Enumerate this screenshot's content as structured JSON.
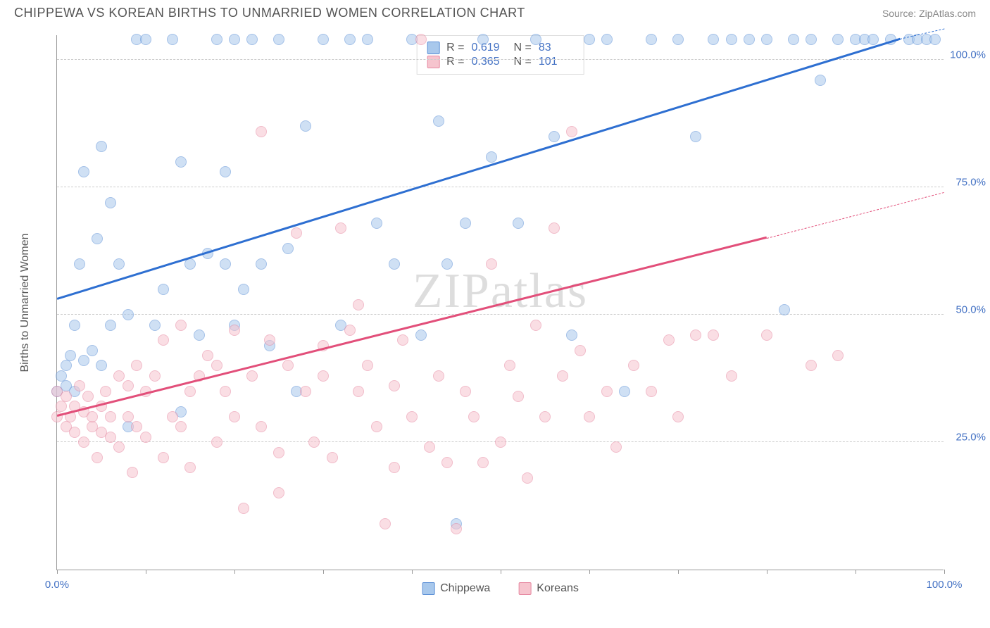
{
  "title": "CHIPPEWA VS KOREAN BIRTHS TO UNMARRIED WOMEN CORRELATION CHART",
  "source_label": "Source: ZipAtlas.com",
  "y_axis_label": "Births to Unmarried Women",
  "watermark": "ZIPatlas",
  "chart": {
    "type": "scatter",
    "xlim": [
      0,
      100
    ],
    "ylim": [
      0,
      105
    ],
    "x_ticks": [
      0,
      10,
      20,
      30,
      40,
      50,
      60,
      70,
      80,
      90,
      100
    ],
    "x_tick_labels": {
      "0": "0.0%",
      "100": "100.0%"
    },
    "y_grid": [
      25,
      50,
      75,
      100
    ],
    "y_tick_labels": {
      "25": "25.0%",
      "50": "50.0%",
      "75": "75.0%",
      "100": "100.0%"
    },
    "background_color": "#ffffff",
    "grid_color": "#cccccc",
    "axis_color": "#999999",
    "tick_label_color": "#4472c4",
    "point_radius": 8,
    "point_opacity": 0.55,
    "series": [
      {
        "name": "Chippewa",
        "fill_color": "#a8c8ec",
        "stroke_color": "#5b8fd6",
        "line_color": "#2e6fd1",
        "r_value": "0.619",
        "n_value": "83",
        "trend": {
          "x1": 0,
          "y1": 53,
          "x2": 95,
          "y2": 104,
          "dash_to_x": 100,
          "dash_to_y": 106
        },
        "points": [
          [
            0,
            35
          ],
          [
            0.5,
            38
          ],
          [
            1,
            40
          ],
          [
            1,
            36
          ],
          [
            1.5,
            42
          ],
          [
            2,
            35
          ],
          [
            2,
            48
          ],
          [
            2.5,
            60
          ],
          [
            3,
            41
          ],
          [
            3,
            78
          ],
          [
            4,
            43
          ],
          [
            4.5,
            65
          ],
          [
            5,
            83
          ],
          [
            5,
            40
          ],
          [
            6,
            48
          ],
          [
            6,
            72
          ],
          [
            7,
            60
          ],
          [
            8,
            28
          ],
          [
            8,
            50
          ],
          [
            9,
            104
          ],
          [
            10,
            104
          ],
          [
            11,
            48
          ],
          [
            12,
            55
          ],
          [
            13,
            104
          ],
          [
            14,
            31
          ],
          [
            14,
            80
          ],
          [
            15,
            60
          ],
          [
            16,
            46
          ],
          [
            17,
            62
          ],
          [
            18,
            104
          ],
          [
            19,
            60
          ],
          [
            19,
            78
          ],
          [
            20,
            48
          ],
          [
            20,
            104
          ],
          [
            21,
            55
          ],
          [
            22,
            104
          ],
          [
            23,
            60
          ],
          [
            24,
            44
          ],
          [
            25,
            104
          ],
          [
            26,
            63
          ],
          [
            27,
            35
          ],
          [
            28,
            87
          ],
          [
            30,
            104
          ],
          [
            32,
            48
          ],
          [
            33,
            104
          ],
          [
            35,
            104
          ],
          [
            36,
            68
          ],
          [
            38,
            60
          ],
          [
            40,
            104
          ],
          [
            41,
            46
          ],
          [
            43,
            88
          ],
          [
            44,
            60
          ],
          [
            45,
            9
          ],
          [
            46,
            68
          ],
          [
            48,
            104
          ],
          [
            49,
            81
          ],
          [
            52,
            68
          ],
          [
            54,
            104
          ],
          [
            56,
            85
          ],
          [
            58,
            46
          ],
          [
            60,
            104
          ],
          [
            62,
            104
          ],
          [
            64,
            35
          ],
          [
            67,
            104
          ],
          [
            70,
            104
          ],
          [
            72,
            85
          ],
          [
            74,
            104
          ],
          [
            76,
            104
          ],
          [
            78,
            104
          ],
          [
            80,
            104
          ],
          [
            82,
            51
          ],
          [
            83,
            104
          ],
          [
            85,
            104
          ],
          [
            86,
            96
          ],
          [
            88,
            104
          ],
          [
            90,
            104
          ],
          [
            91,
            104
          ],
          [
            92,
            104
          ],
          [
            94,
            104
          ],
          [
            96,
            104
          ],
          [
            97,
            104
          ],
          [
            98,
            104
          ],
          [
            99,
            104
          ]
        ]
      },
      {
        "name": "Koreans",
        "fill_color": "#f6c4ce",
        "stroke_color": "#e687a0",
        "line_color": "#e24f7a",
        "r_value": "0.365",
        "n_value": "101",
        "trend": {
          "x1": 0,
          "y1": 30,
          "x2": 80,
          "y2": 65,
          "dash_to_x": 100,
          "dash_to_y": 74
        },
        "points": [
          [
            0,
            30
          ],
          [
            0,
            35
          ],
          [
            0.5,
            32
          ],
          [
            1,
            28
          ],
          [
            1,
            34
          ],
          [
            1.5,
            30
          ],
          [
            2,
            32
          ],
          [
            2,
            27
          ],
          [
            2.5,
            36
          ],
          [
            3,
            25
          ],
          [
            3,
            31
          ],
          [
            3.5,
            34
          ],
          [
            4,
            28
          ],
          [
            4,
            30
          ],
          [
            4.5,
            22
          ],
          [
            5,
            27
          ],
          [
            5,
            32
          ],
          [
            5.5,
            35
          ],
          [
            6,
            26
          ],
          [
            6,
            30
          ],
          [
            7,
            38
          ],
          [
            7,
            24
          ],
          [
            8,
            30
          ],
          [
            8,
            36
          ],
          [
            8.5,
            19
          ],
          [
            9,
            28
          ],
          [
            9,
            40
          ],
          [
            10,
            35
          ],
          [
            10,
            26
          ],
          [
            11,
            38
          ],
          [
            12,
            22
          ],
          [
            12,
            45
          ],
          [
            13,
            30
          ],
          [
            14,
            28
          ],
          [
            14,
            48
          ],
          [
            15,
            35
          ],
          [
            15,
            20
          ],
          [
            16,
            38
          ],
          [
            17,
            42
          ],
          [
            18,
            25
          ],
          [
            18,
            40
          ],
          [
            19,
            35
          ],
          [
            20,
            47
          ],
          [
            20,
            30
          ],
          [
            21,
            12
          ],
          [
            22,
            38
          ],
          [
            23,
            28
          ],
          [
            23,
            86
          ],
          [
            24,
            45
          ],
          [
            25,
            23
          ],
          [
            25,
            15
          ],
          [
            26,
            40
          ],
          [
            27,
            66
          ],
          [
            28,
            35
          ],
          [
            29,
            25
          ],
          [
            30,
            44
          ],
          [
            30,
            38
          ],
          [
            31,
            22
          ],
          [
            32,
            67
          ],
          [
            33,
            47
          ],
          [
            34,
            35
          ],
          [
            34,
            52
          ],
          [
            35,
            40
          ],
          [
            36,
            28
          ],
          [
            37,
            9
          ],
          [
            38,
            20
          ],
          [
            38,
            36
          ],
          [
            39,
            45
          ],
          [
            40,
            30
          ],
          [
            41,
            104
          ],
          [
            42,
            24
          ],
          [
            43,
            38
          ],
          [
            44,
            21
          ],
          [
            45,
            8
          ],
          [
            46,
            35
          ],
          [
            47,
            30
          ],
          [
            48,
            21
          ],
          [
            49,
            60
          ],
          [
            50,
            25
          ],
          [
            51,
            40
          ],
          [
            52,
            34
          ],
          [
            53,
            18
          ],
          [
            54,
            48
          ],
          [
            55,
            30
          ],
          [
            56,
            67
          ],
          [
            57,
            38
          ],
          [
            58,
            86
          ],
          [
            59,
            43
          ],
          [
            60,
            30
          ],
          [
            62,
            35
          ],
          [
            63,
            24
          ],
          [
            65,
            40
          ],
          [
            67,
            35
          ],
          [
            69,
            45
          ],
          [
            70,
            30
          ],
          [
            72,
            46
          ],
          [
            74,
            46
          ],
          [
            76,
            38
          ],
          [
            80,
            46
          ],
          [
            85,
            40
          ],
          [
            88,
            42
          ]
        ]
      }
    ]
  },
  "legend": {
    "series1_label": "Chippewa",
    "series2_label": "Koreans"
  }
}
